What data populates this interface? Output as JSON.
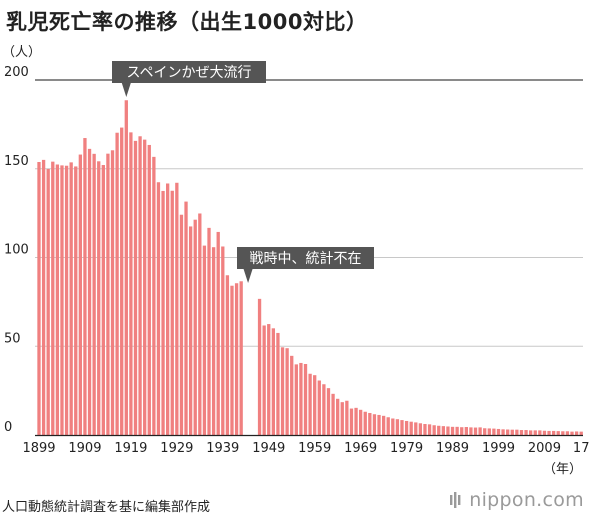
{
  "title": "乳児死亡率の推移（出生1000対比）",
  "source": "人口動態統計調査を基に編集部作成",
  "brand": {
    "text": "nippon.com"
  },
  "colors": {
    "bar": "#f08080",
    "grid": "#c8c8c8",
    "top_line": "#444444",
    "callout_bg": "#555555",
    "callout_text": "#ffffff"
  },
  "chart_data": {
    "type": "bar",
    "y_unit_label": "（人）",
    "x_unit_label": "（年）",
    "ylim": [
      0,
      200
    ],
    "y_ticks": [
      0,
      50,
      100,
      150,
      200
    ],
    "grid": true,
    "x_tick_labels": [
      {
        "year": 1899,
        "label": "1899"
      },
      {
        "year": 1909,
        "label": "1909"
      },
      {
        "year": 1919,
        "label": "1919"
      },
      {
        "year": 1929,
        "label": "1929"
      },
      {
        "year": 1939,
        "label": "1939"
      },
      {
        "year": 1949,
        "label": "1949"
      },
      {
        "year": 1959,
        "label": "1959"
      },
      {
        "year": 1969,
        "label": "1969"
      },
      {
        "year": 1979,
        "label": "1979"
      },
      {
        "year": 1989,
        "label": "1989"
      },
      {
        "year": 1999,
        "label": "1999"
      },
      {
        "year": 2009,
        "label": "2009"
      },
      {
        "year": 2017,
        "label": "17"
      }
    ],
    "year_start": 1899,
    "year_end": 2017,
    "annotations": [
      {
        "text": "スペインかぜ大流行",
        "year": 1918
      },
      {
        "text": "戦時中、統計不在",
        "year": 1944.5
      }
    ],
    "data": [
      [
        1899,
        153.8
      ],
      [
        1900,
        155.0
      ],
      [
        1901,
        149.9
      ],
      [
        1902,
        154.0
      ],
      [
        1903,
        152.4
      ],
      [
        1904,
        151.9
      ],
      [
        1905,
        151.7
      ],
      [
        1906,
        153.6
      ],
      [
        1907,
        151.3
      ],
      [
        1908,
        158.0
      ],
      [
        1909,
        167.3
      ],
      [
        1910,
        161.2
      ],
      [
        1911,
        158.4
      ],
      [
        1912,
        154.2
      ],
      [
        1913,
        152.1
      ],
      [
        1914,
        158.5
      ],
      [
        1915,
        160.4
      ],
      [
        1916,
        170.3
      ],
      [
        1917,
        173.2
      ],
      [
        1918,
        188.6
      ],
      [
        1919,
        170.5
      ],
      [
        1920,
        165.7
      ],
      [
        1921,
        168.3
      ],
      [
        1922,
        166.4
      ],
      [
        1923,
        163.4
      ],
      [
        1924,
        156.7
      ],
      [
        1925,
        142.4
      ],
      [
        1926,
        137.5
      ],
      [
        1927,
        141.7
      ],
      [
        1928,
        137.6
      ],
      [
        1929,
        142.1
      ],
      [
        1930,
        124.1
      ],
      [
        1931,
        131.5
      ],
      [
        1932,
        117.5
      ],
      [
        1933,
        121.3
      ],
      [
        1934,
        124.8
      ],
      [
        1935,
        106.7
      ],
      [
        1936,
        116.7
      ],
      [
        1937,
        105.8
      ],
      [
        1938,
        114.4
      ],
      [
        1939,
        106.2
      ],
      [
        1940,
        90.0
      ],
      [
        1941,
        84.1
      ],
      [
        1942,
        85.5
      ],
      [
        1943,
        86.6
      ],
      [
        1947,
        76.7
      ],
      [
        1948,
        61.7
      ],
      [
        1949,
        62.5
      ],
      [
        1950,
        60.1
      ],
      [
        1951,
        57.5
      ],
      [
        1952,
        49.4
      ],
      [
        1953,
        48.9
      ],
      [
        1954,
        44.6
      ],
      [
        1955,
        39.8
      ],
      [
        1956,
        40.6
      ],
      [
        1957,
        40.0
      ],
      [
        1958,
        34.5
      ],
      [
        1959,
        33.7
      ],
      [
        1960,
        30.7
      ],
      [
        1961,
        28.6
      ],
      [
        1962,
        26.4
      ],
      [
        1963,
        23.2
      ],
      [
        1964,
        20.4
      ],
      [
        1965,
        18.5
      ],
      [
        1966,
        19.3
      ],
      [
        1967,
        14.9
      ],
      [
        1968,
        15.3
      ],
      [
        1969,
        14.2
      ],
      [
        1970,
        13.1
      ],
      [
        1971,
        12.4
      ],
      [
        1972,
        11.7
      ],
      [
        1973,
        11.3
      ],
      [
        1974,
        10.8
      ],
      [
        1975,
        10.0
      ],
      [
        1976,
        9.3
      ],
      [
        1977,
        8.9
      ],
      [
        1978,
        8.4
      ],
      [
        1979,
        7.9
      ],
      [
        1980,
        7.5
      ],
      [
        1981,
        7.1
      ],
      [
        1982,
        6.6
      ],
      [
        1983,
        6.2
      ],
      [
        1984,
        6.0
      ],
      [
        1985,
        5.5
      ],
      [
        1986,
        5.2
      ],
      [
        1987,
        5.0
      ],
      [
        1988,
        4.8
      ],
      [
        1989,
        4.6
      ],
      [
        1990,
        4.6
      ],
      [
        1991,
        4.4
      ],
      [
        1992,
        4.5
      ],
      [
        1993,
        4.3
      ],
      [
        1994,
        4.2
      ],
      [
        1995,
        4.3
      ],
      [
        1996,
        3.8
      ],
      [
        1997,
        3.7
      ],
      [
        1998,
        3.6
      ],
      [
        1999,
        3.4
      ],
      [
        2000,
        3.2
      ],
      [
        2001,
        3.1
      ],
      [
        2002,
        3.0
      ],
      [
        2003,
        3.0
      ],
      [
        2004,
        2.8
      ],
      [
        2005,
        2.8
      ],
      [
        2006,
        2.6
      ],
      [
        2007,
        2.6
      ],
      [
        2008,
        2.6
      ],
      [
        2009,
        2.4
      ],
      [
        2010,
        2.3
      ],
      [
        2011,
        2.3
      ],
      [
        2012,
        2.2
      ],
      [
        2013,
        2.1
      ],
      [
        2014,
        2.1
      ],
      [
        2015,
        1.9
      ],
      [
        2016,
        2.0
      ],
      [
        2017,
        1.9
      ]
    ]
  }
}
